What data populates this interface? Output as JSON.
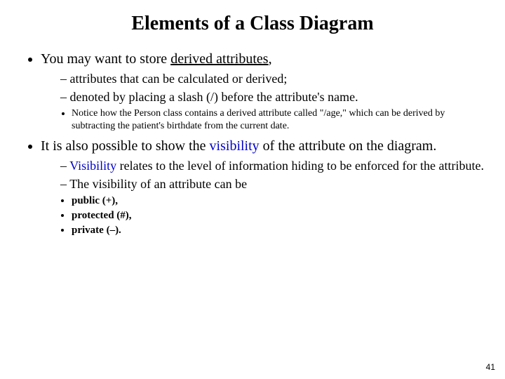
{
  "title": "Elements of a Class Diagram",
  "page_number": "41",
  "bullets": {
    "b1_pre": "You may want to store ",
    "b1_underlined": "derived attributes",
    "b1_post": ",",
    "b1_sub1": "attributes that can be calculated or derived;",
    "b1_sub2": "denoted by placing a slash (/) before the attribute's name.",
    "b1_note": "Notice how the Person class contains a derived attribute called \"/age,\" which can be derived by subtracting the patient's birthdate from the current date.",
    "b2_pre": "It is also possible to show the ",
    "b2_link": "visibility",
    "b2_post": " of the attribute on the diagram.",
    "b2_sub1_link": "Visibility",
    "b2_sub1_post": " relates to the level of information hiding to be enforced for the attribute.",
    "b2_sub2": "The visibility of an attribute can be",
    "vis1": "public (+),",
    "vis2": "protected (#),",
    "vis3": "private (–)."
  }
}
